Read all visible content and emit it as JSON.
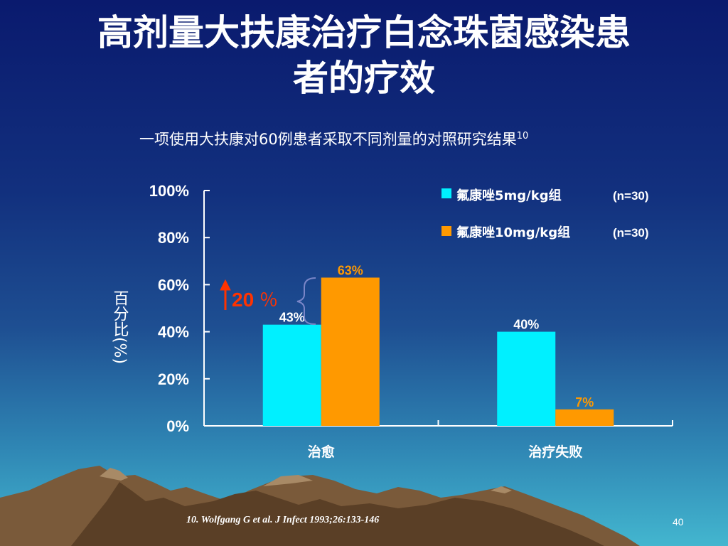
{
  "slide": {
    "title_line1": "高剂量大扶康治疗白念珠菌感染患",
    "title_line2": "者的疗效",
    "subtitle": "一项使用大扶康对60例患者采取不同剂量的对照研究结果",
    "subtitle_ref": "10",
    "footnote": "10.   Wolfgang G et al. J Infect 1993;26:133-146",
    "page_number": "40"
  },
  "colors": {
    "series1": "#00f0ff",
    "series2": "#ff9900",
    "axis": "#ffffff",
    "highlight_red": "#ff3300",
    "brace": "#7a86c8"
  },
  "annotation": {
    "text": "20",
    "pct": "％",
    "arrow_icon": "up-arrow-icon"
  },
  "chart_data": {
    "type": "bar",
    "ylabel": "百分比(%)",
    "ylim": [
      0,
      100
    ],
    "yticks": [
      "0%",
      "20%",
      "40%",
      "60%",
      "80%",
      "100%"
    ],
    "categories": [
      "治愈",
      "治疗失败"
    ],
    "series": [
      {
        "name": "氟康唑5mg/kg组",
        "n": "(n=30)",
        "values": [
          43,
          40
        ],
        "labels": [
          "43%",
          "40%"
        ]
      },
      {
        "name": "氟康唑10mg/kg组",
        "n": "(n=30)",
        "values": [
          63,
          7
        ],
        "labels": [
          "63%",
          "7%"
        ]
      }
    ],
    "legend_position": "top-right"
  }
}
